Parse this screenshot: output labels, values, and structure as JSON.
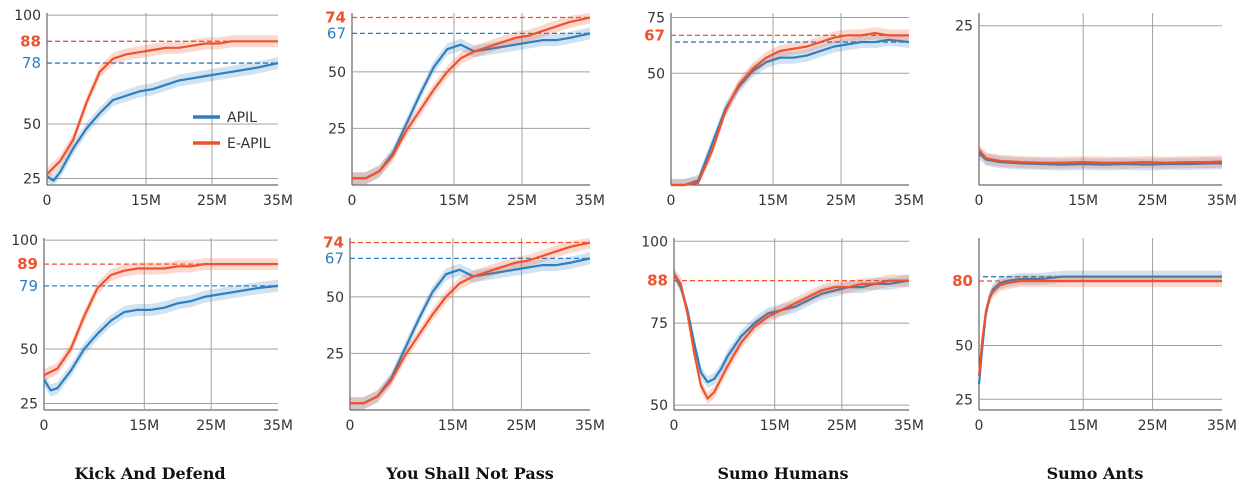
{
  "colors": {
    "APIL": "#2e7ec1",
    "E-APIL": "#f0522b",
    "grid": "#a0a0a0"
  },
  "legend": {
    "items": [
      {
        "name": "APIL",
        "color": "#2e7ec1"
      },
      {
        "name": "E-APIL",
        "color": "#f0522b"
      }
    ]
  },
  "column_titles": [
    "Kick And Defend",
    "You Shall Not Pass",
    "Sumo Humans",
    "Sumo Ants"
  ],
  "chart_data": [
    {
      "type": "line",
      "panel": "Kick And Defend (top)",
      "xlim": [
        0,
        35
      ],
      "ylim": [
        22,
        101
      ],
      "xticks": [
        "0",
        "15M",
        "25M",
        "35M"
      ],
      "yticks": [
        "25",
        "50",
        "100"
      ],
      "ref_lines": [
        {
          "label": "88",
          "value": 88,
          "series": "E-APIL"
        },
        {
          "label": "78",
          "value": 78,
          "series": "APIL"
        }
      ],
      "series": [
        {
          "name": "APIL",
          "x": [
            0,
            1,
            2,
            4,
            6,
            8,
            10,
            12,
            14,
            16,
            18,
            20,
            22,
            24,
            26,
            28,
            30,
            32,
            35
          ],
          "y": [
            26,
            24,
            28,
            39,
            48,
            55,
            61,
            63,
            65,
            66,
            68,
            70,
            71,
            72,
            73,
            74,
            75,
            76,
            78
          ]
        },
        {
          "name": "E-APIL",
          "x": [
            0,
            2,
            4,
            6,
            8,
            10,
            12,
            14,
            16,
            18,
            20,
            22,
            24,
            26,
            28,
            30,
            32,
            35
          ],
          "y": [
            27,
            33,
            43,
            60,
            74,
            80,
            82,
            83,
            84,
            85,
            85,
            86,
            87,
            87,
            88,
            88,
            88,
            88
          ]
        }
      ]
    },
    {
      "type": "line",
      "panel": "You Shall Not Pass (top)",
      "xlim": [
        0,
        35
      ],
      "ylim": [
        0,
        76
      ],
      "xticks": [
        "0",
        "15M",
        "25M",
        "35M"
      ],
      "yticks": [
        "25",
        "50"
      ],
      "ref_lines": [
        {
          "label": "74",
          "value": 74,
          "series": "E-APIL"
        },
        {
          "label": "67",
          "value": 67,
          "series": "APIL"
        }
      ],
      "series": [
        {
          "name": "APIL",
          "x": [
            0,
            2,
            4,
            6,
            8,
            10,
            12,
            14,
            16,
            18,
            20,
            22,
            24,
            26,
            28,
            30,
            32,
            35
          ],
          "y": [
            3,
            3,
            6,
            14,
            27,
            40,
            52,
            60,
            62,
            59,
            60,
            61,
            62,
            63,
            64,
            64,
            65,
            67
          ]
        },
        {
          "name": "E-APIL",
          "x": [
            0,
            2,
            4,
            6,
            8,
            10,
            12,
            14,
            16,
            18,
            20,
            22,
            24,
            26,
            28,
            30,
            32,
            35
          ],
          "y": [
            3,
            3,
            6,
            13,
            24,
            33,
            42,
            50,
            56,
            59,
            61,
            63,
            65,
            66,
            68,
            70,
            72,
            74
          ]
        }
      ]
    },
    {
      "type": "line",
      "panel": "Sumo Humans (top)",
      "xlim": [
        0,
        35
      ],
      "ylim": [
        0,
        77
      ],
      "xticks": [
        "0",
        "15M",
        "25M",
        "35M"
      ],
      "yticks": [
        "50",
        "75"
      ],
      "ref_lines": [
        {
          "label": "67",
          "value": 67,
          "series": "E-APIL"
        },
        {
          "label": "",
          "value": 64,
          "series": "APIL"
        }
      ],
      "series": [
        {
          "name": "APIL",
          "x": [
            0,
            2,
            4,
            6,
            8,
            10,
            12,
            14,
            16,
            18,
            20,
            22,
            24,
            26,
            28,
            30,
            32,
            35
          ],
          "y": [
            0,
            0,
            2,
            18,
            34,
            44,
            51,
            55,
            57,
            57,
            58,
            60,
            62,
            63,
            64,
            64,
            65,
            64
          ]
        },
        {
          "name": "E-APIL",
          "x": [
            0,
            2,
            4,
            6,
            8,
            10,
            12,
            14,
            16,
            18,
            20,
            22,
            24,
            26,
            28,
            30,
            32,
            35
          ],
          "y": [
            0,
            0,
            1,
            15,
            33,
            45,
            52,
            57,
            60,
            61,
            62,
            64,
            66,
            67,
            67,
            68,
            67,
            67
          ]
        }
      ]
    },
    {
      "type": "line",
      "panel": "Sumo Ants (top)",
      "xlim": [
        0,
        35
      ],
      "ylim": [
        0,
        27
      ],
      "xticks": [
        "0",
        "15M",
        "25M",
        "35M"
      ],
      "yticks": [
        "25"
      ],
      "ref_lines": [],
      "series": [
        {
          "name": "APIL",
          "x": [
            0,
            1,
            3,
            6,
            9,
            12,
            15,
            18,
            21,
            24,
            27,
            30,
            33,
            35
          ],
          "y": [
            5,
            4,
            3.6,
            3.4,
            3.3,
            3.2,
            3.3,
            3.2,
            3.3,
            3.2,
            3.3,
            3.3,
            3.4,
            3.4
          ]
        },
        {
          "name": "E-APIL",
          "x": [
            0,
            1,
            3,
            6,
            9,
            12,
            15,
            18,
            21,
            24,
            27,
            30,
            33,
            35
          ],
          "y": [
            5.5,
            4.2,
            3.8,
            3.6,
            3.5,
            3.5,
            3.6,
            3.5,
            3.5,
            3.6,
            3.5,
            3.6,
            3.6,
            3.7
          ]
        }
      ]
    },
    {
      "type": "line",
      "panel": "Kick And Defend (bottom)",
      "xlim": [
        0,
        35
      ],
      "ylim": [
        22,
        101
      ],
      "xticks": [
        "0",
        "15M",
        "25M",
        "35M"
      ],
      "yticks": [
        "25",
        "50",
        "100"
      ],
      "ref_lines": [
        {
          "label": "89",
          "value": 89,
          "series": "E-APIL"
        },
        {
          "label": "79",
          "value": 79,
          "series": "APIL"
        }
      ],
      "series": [
        {
          "name": "APIL",
          "x": [
            0,
            1,
            2,
            4,
            6,
            8,
            10,
            12,
            14,
            16,
            18,
            20,
            22,
            24,
            26,
            28,
            30,
            32,
            35
          ],
          "y": [
            36,
            31,
            32,
            40,
            50,
            57,
            63,
            67,
            68,
            68,
            69,
            71,
            72,
            74,
            75,
            76,
            77,
            78,
            79
          ]
        },
        {
          "name": "E-APIL",
          "x": [
            0,
            2,
            4,
            6,
            8,
            10,
            12,
            14,
            16,
            18,
            20,
            22,
            24,
            26,
            28,
            30,
            32,
            35
          ],
          "y": [
            38,
            41,
            50,
            65,
            78,
            84,
            86,
            87,
            87,
            87,
            88,
            88,
            89,
            89,
            89,
            89,
            89,
            89
          ]
        }
      ]
    },
    {
      "type": "line",
      "panel": "You Shall Not Pass (bottom)",
      "xlim": [
        0,
        35
      ],
      "ylim": [
        0,
        76
      ],
      "xticks": [
        "0",
        "15M",
        "25M",
        "35M"
      ],
      "yticks": [
        "25",
        "50"
      ],
      "ref_lines": [
        {
          "label": "74",
          "value": 74,
          "series": "E-APIL"
        },
        {
          "label": "67",
          "value": 67,
          "series": "APIL"
        }
      ],
      "series": [
        {
          "name": "APIL",
          "x": [
            0,
            2,
            4,
            6,
            8,
            10,
            12,
            14,
            16,
            18,
            20,
            22,
            24,
            26,
            28,
            30,
            32,
            35
          ],
          "y": [
            3,
            3,
            6,
            14,
            27,
            40,
            52,
            60,
            62,
            59,
            60,
            61,
            62,
            63,
            64,
            64,
            65,
            67
          ]
        },
        {
          "name": "E-APIL",
          "x": [
            0,
            2,
            4,
            6,
            8,
            10,
            12,
            14,
            16,
            18,
            20,
            22,
            24,
            26,
            28,
            30,
            32,
            35
          ],
          "y": [
            3,
            3,
            6,
            13,
            24,
            33,
            42,
            50,
            56,
            59,
            61,
            63,
            65,
            66,
            68,
            70,
            72,
            74
          ]
        }
      ]
    },
    {
      "type": "line",
      "panel": "Sumo Humans (bottom)",
      "xlim": [
        0,
        35
      ],
      "ylim": [
        48.5,
        101
      ],
      "xticks": [
        "0",
        "15M",
        "25M",
        "35M"
      ],
      "yticks": [
        "50",
        "75",
        "100"
      ],
      "ref_lines": [
        {
          "label": "88",
          "value": 88,
          "series": "E-APIL"
        }
      ],
      "series": [
        {
          "name": "APIL",
          "x": [
            0,
            1,
            2,
            3,
            4,
            5,
            6,
            7,
            8,
            10,
            12,
            14,
            16,
            18,
            20,
            22,
            24,
            26,
            28,
            30,
            32,
            35
          ],
          "y": [
            90,
            86,
            79,
            69,
            60,
            57,
            58,
            61,
            65,
            71,
            75,
            78,
            79,
            80,
            82,
            84,
            85,
            86,
            86,
            87,
            87,
            88
          ]
        },
        {
          "name": "E-APIL",
          "x": [
            0,
            1,
            2,
            3,
            4,
            5,
            6,
            7,
            8,
            10,
            12,
            14,
            16,
            18,
            20,
            22,
            24,
            26,
            28,
            30,
            32,
            35
          ],
          "y": [
            90,
            87,
            78,
            66,
            56,
            52,
            54,
            58,
            62,
            69,
            74,
            77,
            79,
            81,
            83,
            85,
            86,
            86,
            87,
            87,
            88,
            88
          ]
        }
      ]
    },
    {
      "type": "line",
      "panel": "Sumo Ants (bottom)",
      "xlim": [
        0,
        35
      ],
      "ylim": [
        20,
        100
      ],
      "xticks": [
        "0",
        "15M",
        "25M",
        "35M"
      ],
      "yticks": [
        "25",
        "50"
      ],
      "ref_lines": [
        {
          "label": "80",
          "value": 80,
          "series": "E-APIL"
        },
        {
          "label": "",
          "value": 82,
          "series": "APIL"
        }
      ],
      "series": [
        {
          "name": "APIL",
          "x": [
            0,
            0.5,
            1,
            1.5,
            2,
            3,
            4,
            6,
            9,
            12,
            15,
            18,
            21,
            24,
            27,
            30,
            33,
            35
          ],
          "y": [
            32,
            50,
            65,
            72,
            76,
            79,
            80,
            81,
            81,
            82,
            82,
            82,
            82,
            82,
            82,
            82,
            82,
            82
          ]
        },
        {
          "name": "E-APIL",
          "x": [
            0,
            0.5,
            1,
            1.5,
            2,
            3,
            4,
            6,
            9,
            12,
            15,
            18,
            21,
            24,
            27,
            30,
            33,
            35
          ],
          "y": [
            36,
            53,
            66,
            72,
            75,
            78,
            79,
            80,
            80,
            80,
            80,
            80,
            80,
            80,
            80,
            80,
            80,
            80
          ]
        }
      ]
    }
  ]
}
